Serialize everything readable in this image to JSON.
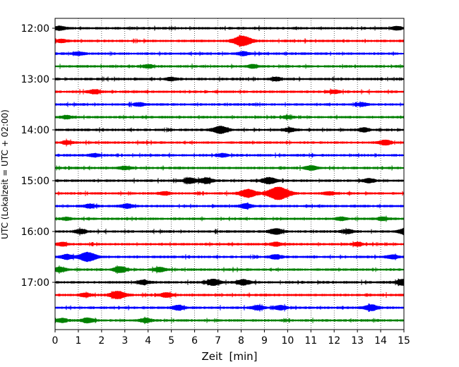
{
  "chart_data": {
    "type": "line",
    "xlabel": "Zeit  [min]",
    "ylabel": "UTC (Lokalzeit = UTC + 02:00)",
    "xlim": [
      0,
      15
    ],
    "x_ticks": [
      "0",
      "1",
      "2",
      "3",
      "4",
      "5",
      "6",
      "7",
      "8",
      "9",
      "10",
      "11",
      "12",
      "13",
      "14",
      "15"
    ],
    "y_tick_labels": [
      "12:00",
      "13:00",
      "14:00",
      "15:00",
      "16:00",
      "17:00"
    ],
    "grid": "vertical dotted",
    "trace_colors": [
      "#000000",
      "#ff0000",
      "#0000ff",
      "#008000"
    ],
    "traces": [
      {
        "start": "12:00",
        "events": [
          {
            "t": 0.2,
            "a": 0.35
          },
          {
            "t": 14.7,
            "a": 0.3
          }
        ]
      },
      {
        "start": "12:15",
        "events": [
          {
            "t": 8.05,
            "a": 1.0
          },
          {
            "t": 0.3,
            "a": 0.3
          }
        ]
      },
      {
        "start": "12:30",
        "events": [
          {
            "t": 1.0,
            "a": 0.3
          },
          {
            "t": 8.1,
            "a": 0.35
          }
        ]
      },
      {
        "start": "12:45",
        "events": [
          {
            "t": 4.0,
            "a": 0.3
          },
          {
            "t": 8.5,
            "a": 0.3
          }
        ]
      },
      {
        "start": "13:00",
        "events": [
          {
            "t": 5.0,
            "a": 0.3
          },
          {
            "t": 9.5,
            "a": 0.3
          }
        ]
      },
      {
        "start": "13:15",
        "events": [
          {
            "t": 1.7,
            "a": 0.4
          },
          {
            "t": 12.0,
            "a": 0.3
          }
        ]
      },
      {
        "start": "13:30",
        "events": [
          {
            "t": 13.2,
            "a": 0.3
          },
          {
            "t": 3.6,
            "a": 0.3
          }
        ]
      },
      {
        "start": "13:45",
        "events": [
          {
            "t": 0.5,
            "a": 0.3
          },
          {
            "t": 10.0,
            "a": 0.25
          }
        ]
      },
      {
        "start": "14:00",
        "events": [
          {
            "t": 7.1,
            "a": 0.7
          },
          {
            "t": 10.1,
            "a": 0.35
          },
          {
            "t": 13.3,
            "a": 0.35
          }
        ]
      },
      {
        "start": "14:15",
        "events": [
          {
            "t": 14.2,
            "a": 0.45
          },
          {
            "t": 0.5,
            "a": 0.3
          }
        ]
      },
      {
        "start": "14:30",
        "events": [
          {
            "t": 7.2,
            "a": 0.3
          },
          {
            "t": 1.7,
            "a": 0.3
          }
        ]
      },
      {
        "start": "14:45",
        "events": [
          {
            "t": 11.0,
            "a": 0.4
          },
          {
            "t": 3.0,
            "a": 0.3
          }
        ]
      },
      {
        "start": "15:00",
        "events": [
          {
            "t": 6.5,
            "a": 0.5
          },
          {
            "t": 9.2,
            "a": 0.6
          },
          {
            "t": 5.8,
            "a": 0.5
          },
          {
            "t": 13.5,
            "a": 0.4
          }
        ]
      },
      {
        "start": "15:15",
        "events": [
          {
            "t": 8.3,
            "a": 0.8
          },
          {
            "t": 9.6,
            "a": 1.3
          },
          {
            "t": 11.8,
            "a": 0.3
          },
          {
            "t": 4.7,
            "a": 0.3
          }
        ]
      },
      {
        "start": "15:30",
        "events": [
          {
            "t": 8.2,
            "a": 0.45
          },
          {
            "t": 3.1,
            "a": 0.4
          },
          {
            "t": 1.5,
            "a": 0.35
          }
        ]
      },
      {
        "start": "15:45",
        "events": [
          {
            "t": 12.3,
            "a": 0.3
          },
          {
            "t": 14.1,
            "a": 0.3
          },
          {
            "t": 0.5,
            "a": 0.25
          }
        ]
      },
      {
        "start": "16:00",
        "events": [
          {
            "t": 9.5,
            "a": 0.55
          },
          {
            "t": 1.1,
            "a": 0.4
          },
          {
            "t": 15.0,
            "a": 0.45
          },
          {
            "t": 12.6,
            "a": 0.35
          }
        ]
      },
      {
        "start": "16:15",
        "events": [
          {
            "t": 9.5,
            "a": 0.35
          },
          {
            "t": 0.3,
            "a": 0.3
          },
          {
            "t": 13.0,
            "a": 0.3
          }
        ]
      },
      {
        "start": "16:30",
        "events": [
          {
            "t": 1.4,
            "a": 0.9
          },
          {
            "t": 0.5,
            "a": 0.45
          },
          {
            "t": 9.5,
            "a": 0.4
          },
          {
            "t": 14.5,
            "a": 0.35
          }
        ]
      },
      {
        "start": "16:45",
        "events": [
          {
            "t": 2.8,
            "a": 0.55
          },
          {
            "t": 0.2,
            "a": 0.45
          },
          {
            "t": 4.5,
            "a": 0.4
          }
        ]
      },
      {
        "start": "17:00",
        "events": [
          {
            "t": 6.8,
            "a": 0.6
          },
          {
            "t": 8.1,
            "a": 0.5
          },
          {
            "t": 15.0,
            "a": 0.6
          },
          {
            "t": 3.8,
            "a": 0.4
          }
        ]
      },
      {
        "start": "17:15",
        "events": [
          {
            "t": 2.7,
            "a": 0.75
          },
          {
            "t": 4.8,
            "a": 0.4
          },
          {
            "t": 1.3,
            "a": 0.35
          }
        ]
      },
      {
        "start": "17:30",
        "events": [
          {
            "t": 13.6,
            "a": 0.55
          },
          {
            "t": 5.3,
            "a": 0.45
          },
          {
            "t": 9.7,
            "a": 0.4
          },
          {
            "t": 8.7,
            "a": 0.4
          }
        ]
      },
      {
        "start": "17:45",
        "events": [
          {
            "t": 1.4,
            "a": 0.45
          },
          {
            "t": 3.9,
            "a": 0.4
          },
          {
            "t": 0.3,
            "a": 0.35
          }
        ]
      }
    ]
  }
}
